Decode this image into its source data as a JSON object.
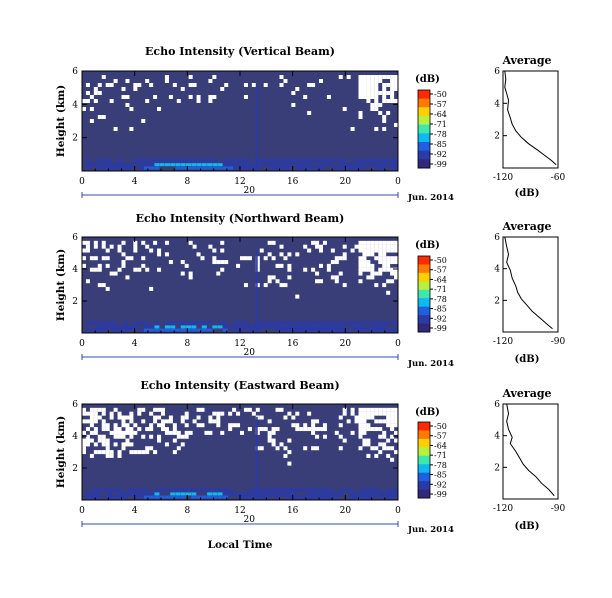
{
  "panels": [
    {
      "title": "Echo Intensity (Vertical Beam)",
      "average_title": "Average",
      "average_x_ticks": [
        "-120",
        "-60"
      ],
      "average_unit": "(dB)",
      "date_label": "Jun. 2014"
    },
    {
      "title": "Echo Intensity (Northward Beam)",
      "average_title": "Average",
      "average_x_ticks": [
        "-120",
        "-90"
      ],
      "average_unit": "(dB)",
      "date_label": "Jun. 2014"
    },
    {
      "title": "Echo Intensity (Eastward Beam)",
      "average_title": "Average",
      "average_x_ticks": [
        "-120",
        "-90"
      ],
      "average_unit": "(dB)",
      "date_label": "Jun. 2014"
    }
  ],
  "y_axis_label": "Height (km)",
  "x_axis_label": "Local Time",
  "colorbar": {
    "unit": "(dB)",
    "ticks": [
      "-50",
      "-57",
      "-64",
      "-71",
      "-78",
      "-85",
      "-92",
      "-99"
    ],
    "colors": [
      "#ff2a00",
      "#ff7a00",
      "#ffd000",
      "#b8f040",
      "#3ce8b0",
      "#10b8f0",
      "#2060e0",
      "#2a3aa8",
      "#302878"
    ]
  },
  "colors": {
    "background": "#3a3e78",
    "missing": "#ffffff"
  },
  "chart_data": [
    {
      "type": "heatmap",
      "title": "Echo Intensity (Vertical Beam)",
      "ylabel": "Height (km)",
      "xlim": [
        0,
        24
      ],
      "ylim": [
        0,
        6
      ],
      "x_ticks": [
        "0",
        "4",
        "8",
        "12",
        "16",
        "20",
        "0"
      ],
      "y_ticks": [
        "2",
        "4",
        "6"
      ],
      "day_label": "20",
      "value_range_db": [
        -99,
        -50
      ],
      "average_profile": {
        "xlim": [
          -120,
          -60
        ],
        "ylim": [
          0,
          6
        ],
        "x": [
          -118,
          -117,
          -118,
          -116,
          -114,
          -115,
          -112,
          -110,
          -106,
          -100,
          -92,
          -82,
          -75,
          -68,
          -62
        ],
        "y": [
          6.0,
          5.5,
          5.0,
          4.6,
          4.2,
          3.6,
          3.1,
          2.7,
          2.3,
          1.9,
          1.5,
          1.1,
          0.8,
          0.5,
          0.2
        ],
        "y_ticks": [
          "2",
          "4",
          "6"
        ]
      }
    },
    {
      "type": "heatmap",
      "title": "Echo Intensity (Northward Beam)",
      "ylabel": "Height (km)",
      "xlim": [
        0,
        24
      ],
      "ylim": [
        0,
        6
      ],
      "x_ticks": [
        "0",
        "4",
        "8",
        "12",
        "16",
        "20",
        "0"
      ],
      "y_ticks": [
        "2",
        "4",
        "6"
      ],
      "day_label": "20",
      "value_range_db": [
        -99,
        -50
      ],
      "average_profile": {
        "xlim": [
          -120,
          -90
        ],
        "ylim": [
          0,
          6
        ],
        "x": [
          -119,
          -118,
          -117,
          -118,
          -116,
          -115,
          -113,
          -112,
          -110,
          -107,
          -104,
          -100,
          -96,
          -93
        ],
        "y": [
          6.0,
          5.4,
          4.9,
          4.4,
          3.9,
          3.4,
          2.9,
          2.5,
          2.1,
          1.7,
          1.3,
          0.9,
          0.5,
          0.2
        ],
        "y_ticks": [
          "2",
          "4",
          "6"
        ]
      }
    },
    {
      "type": "heatmap",
      "title": "Echo Intensity (Eastward Beam)",
      "ylabel": "Height (km)",
      "xlim": [
        0,
        24
      ],
      "ylim": [
        0,
        6
      ],
      "x_ticks": [
        "0",
        "4",
        "8",
        "12",
        "16",
        "20",
        "0"
      ],
      "y_ticks": [
        "2",
        "4",
        "6"
      ],
      "day_label": "20",
      "value_range_db": [
        -99,
        -50
      ],
      "average_profile": {
        "xlim": [
          -120,
          -90
        ],
        "ylim": [
          0,
          6
        ],
        "x": [
          -118,
          -117,
          -118,
          -117,
          -115,
          -116,
          -113,
          -111,
          -109,
          -106,
          -102,
          -99,
          -95,
          -92
        ],
        "y": [
          6.0,
          5.4,
          4.9,
          4.4,
          3.9,
          3.5,
          3.0,
          2.6,
          2.2,
          1.8,
          1.4,
          1.0,
          0.6,
          0.2
        ],
        "y_ticks": [
          "2",
          "4",
          "6"
        ]
      }
    }
  ]
}
